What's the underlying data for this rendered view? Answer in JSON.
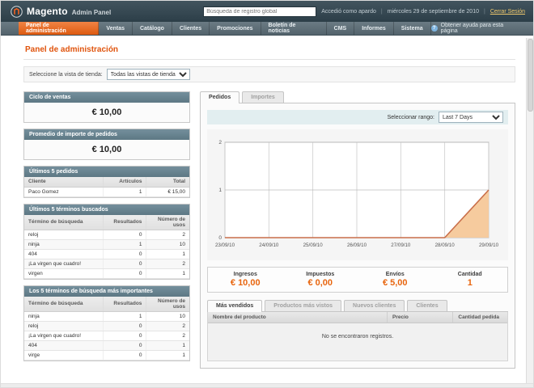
{
  "header": {
    "logo_title": "Magento",
    "logo_subtitle": "Admin Panel",
    "search_placeholder": "Búsqueda de registro global",
    "logged_in_as": "Accedió como apardo",
    "date": "miércoles 29 de septiembre de 2010",
    "logout_label": "Cerrar Sesión"
  },
  "nav": {
    "items": [
      "Panel de administración",
      "Ventas",
      "Catálogo",
      "Clientes",
      "Promociones",
      "Boletín de noticias",
      "CMS",
      "Informes",
      "Sistema"
    ],
    "active_index": 0,
    "help_label": "Obtener ayuda para esta página"
  },
  "page": {
    "title": "Panel de administración",
    "store_view_label": "Seleccione la vista de tienda:",
    "store_view_value": "Todas las vistas de tienda"
  },
  "left": {
    "lifetime_sales": {
      "title": "Ciclo de ventas",
      "value": "€ 10,00"
    },
    "average_orders": {
      "title": "Promedio de importe de pedidos",
      "value": "€ 10,00"
    },
    "last_orders": {
      "title": "Últimos 5 pedidos",
      "columns": [
        "Cliente",
        "Artículos",
        "Total"
      ],
      "rows": [
        [
          "Paco Gomez",
          "1",
          "€ 15,00"
        ]
      ]
    },
    "last_search_terms": {
      "title": "Últimos 5 términos buscados",
      "columns": [
        "Término de búsqueda",
        "Resultados",
        "Número de usos"
      ],
      "rows": [
        [
          "reloj",
          "0",
          "2"
        ],
        [
          "ninja",
          "1",
          "10"
        ],
        [
          "404",
          "0",
          "1"
        ],
        [
          "¡La virgen que cuadro!",
          "0",
          "2"
        ],
        [
          "virgen",
          "0",
          "1"
        ]
      ]
    },
    "top_search_terms": {
      "title": "Los 5 términos de búsqueda más importantes",
      "columns": [
        "Término de búsqueda",
        "Resultados",
        "Número de usos"
      ],
      "rows": [
        [
          "ninja",
          "1",
          "10"
        ],
        [
          "reloj",
          "0",
          "2"
        ],
        [
          "¡La virgen que cuadro!",
          "0",
          "2"
        ],
        [
          "404",
          "0",
          "1"
        ],
        [
          "virge",
          "0",
          "1"
        ]
      ]
    }
  },
  "dashboard": {
    "tabs": [
      "Pedidos",
      "Importes"
    ],
    "active_tab": 0,
    "range_label": "Seleccionar rango:",
    "range_value": "Last 7 Days",
    "totals": [
      {
        "label": "Ingresos",
        "value": "€ 10,00"
      },
      {
        "label": "Impuestos",
        "value": "€ 0,00"
      },
      {
        "label": "Envíos",
        "value": "€ 5,00"
      },
      {
        "label": "Cantidad",
        "value": "1"
      }
    ],
    "bottom_tabs": [
      "Más vendidos",
      "Productos más vistos",
      "Nuevos clientes",
      "Clientes"
    ],
    "bottom_active": 0,
    "grid": {
      "columns": [
        "Nombre del producto",
        "Precio",
        "Cantidad pedida"
      ],
      "empty_message": "No se encontraron registros."
    }
  },
  "chart_data": {
    "type": "area",
    "title": "Pedidos - Last 7 Days",
    "x": [
      "23/09/10",
      "24/09/10",
      "25/09/10",
      "26/09/10",
      "27/09/10",
      "28/09/10",
      "29/09/10"
    ],
    "series": [
      {
        "name": "Pedidos",
        "values": [
          0,
          0,
          0,
          0,
          0,
          0,
          1
        ]
      }
    ],
    "ylim": [
      0,
      2
    ],
    "yticks": [
      0,
      1,
      2
    ],
    "grid": true,
    "legend": "none",
    "fill_color": "#f6cb9e",
    "line_color": "#c96f4a"
  },
  "colors": {
    "header_dark": "#32464f",
    "nav_gray": "#5c6d75",
    "active_orange": "#e9672b",
    "accent_orange": "#e8650e",
    "card_header": "#69828e",
    "range_strip": "#e2eef0"
  }
}
